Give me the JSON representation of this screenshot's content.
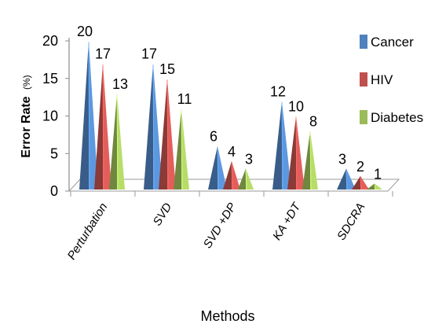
{
  "chart_data": {
    "type": "bar",
    "style": "3d-cone",
    "categories": [
      "Perturbation",
      "SVD",
      "SVD +DP",
      "KA +DT",
      "SDCRA"
    ],
    "series": [
      {
        "name": "Cancer",
        "values": [
          20,
          17,
          6,
          12,
          3
        ],
        "color": "#4f81bd"
      },
      {
        "name": "HIV",
        "values": [
          17,
          15,
          4,
          10,
          2
        ],
        "color": "#c0504d"
      },
      {
        "name": "Diabetes",
        "values": [
          13,
          11,
          3,
          8,
          1
        ],
        "color": "#9bbb59"
      }
    ],
    "xlabel": "Methods",
    "ylabel": "Error Rate",
    "ylabel_unit": "(%)",
    "ylim": [
      0,
      20
    ],
    "yticks": [
      0,
      5,
      10,
      15,
      20
    ],
    "legend_position": "right",
    "grid": false,
    "data_labels": true
  }
}
